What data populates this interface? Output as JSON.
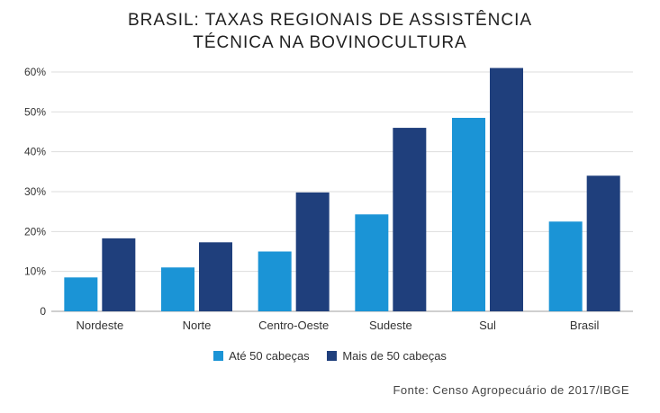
{
  "chart_data": {
    "type": "bar",
    "title_lines": [
      "BRASIL: TAXAS REGIONAIS DE ASSISTÊNCIA",
      "TÉCNICA NA BOVINOCULTURA"
    ],
    "categories": [
      "Nordeste",
      "Norte",
      "Centro-Oeste",
      "Sudeste",
      "Sul",
      "Brasil"
    ],
    "series": [
      {
        "name": "Até 50 cabeças",
        "color": "#1b94d6",
        "values": [
          8.5,
          11,
          15,
          24.3,
          48.5,
          22.5
        ]
      },
      {
        "name": "Mais de 50 cabeças",
        "color": "#1f3f7c",
        "values": [
          18.3,
          17.3,
          29.8,
          46,
          61,
          34
        ]
      }
    ],
    "ylim": [
      0,
      60
    ],
    "yticks": [
      0,
      10,
      20,
      30,
      40,
      50,
      60
    ],
    "ytick_labels": [
      "0",
      "10%",
      "20%",
      "30%",
      "40%",
      "50%",
      "60%"
    ],
    "grid": true,
    "legend_position": "bottom",
    "source": "Fonte: Censo Agropecuário de 2017/IBGE"
  }
}
